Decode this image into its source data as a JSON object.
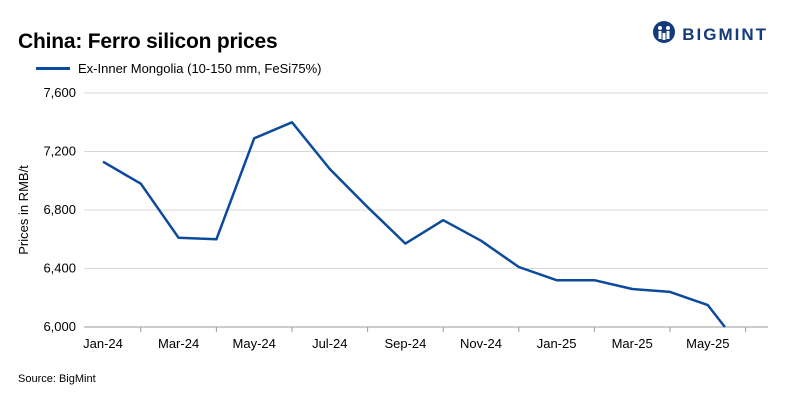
{
  "brand": {
    "name": "BIGMINT",
    "colors": {
      "primary": "#133a7c"
    }
  },
  "source": "Source: BigMint",
  "chart_data": {
    "type": "line",
    "title": "China: Ferro silicon prices",
    "xlabel": "",
    "ylabel": "Prices in RMB/t",
    "ylim": [
      6000,
      7600
    ],
    "yticks": [
      6000,
      6400,
      6800,
      7200,
      7600
    ],
    "ytick_labels": [
      "6,000",
      "6,400",
      "6,800",
      "7,200",
      "7,600"
    ],
    "xtick_labels": [
      "Jan-24",
      "Mar-24",
      "May-24",
      "Jul-24",
      "Sep-24",
      "Nov-24",
      "Jan-25",
      "Mar-25",
      "May-25"
    ],
    "grid": true,
    "legend": "top-left",
    "series": [
      {
        "name": "Ex-Inner Mongolia (10-150 mm, FeSi75%)",
        "color": "#0c4a9c",
        "x": [
          "2024-01-01",
          "2024-02-01",
          "2024-03-01",
          "2024-04-01",
          "2024-05-01",
          "2024-06-01",
          "2024-07-01",
          "2024-08-01",
          "2024-09-01",
          "2024-10-01",
          "2024-11-01",
          "2024-12-01",
          "2025-01-01",
          "2025-02-01",
          "2025-03-01",
          "2025-04-01",
          "2025-05-01",
          "2025-05-15"
        ],
        "values": [
          7130,
          6980,
          6610,
          6600,
          7290,
          7400,
          7080,
          6820,
          6570,
          6730,
          6590,
          6410,
          6320,
          6320,
          6260,
          6240,
          6150,
          6000
        ]
      }
    ]
  }
}
